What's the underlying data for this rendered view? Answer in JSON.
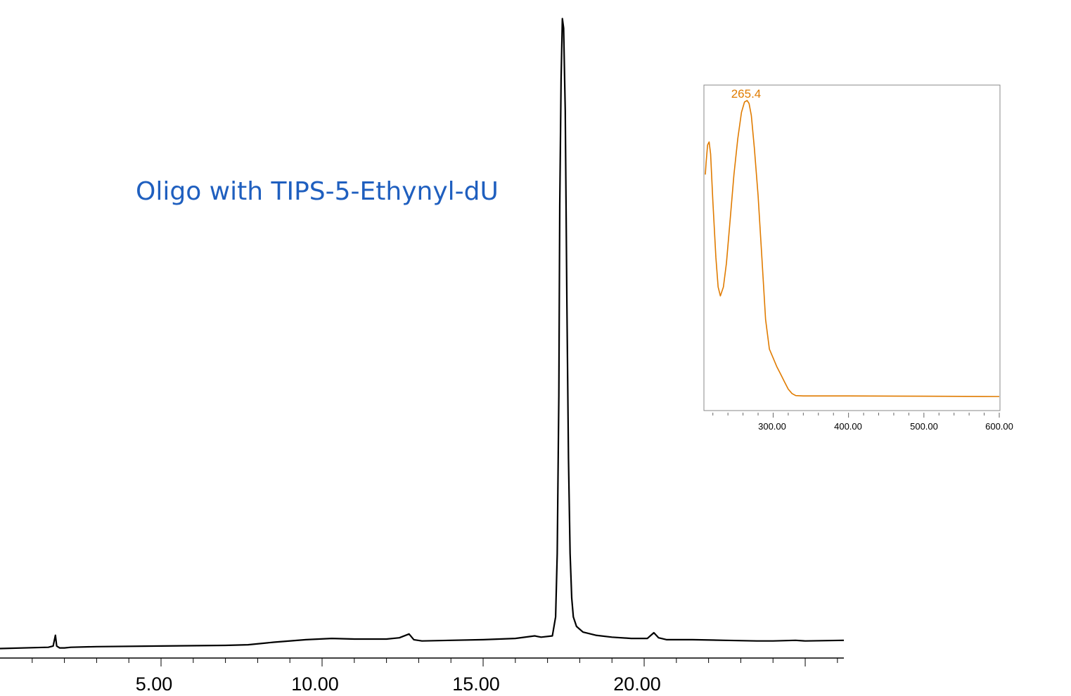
{
  "chart_data": [
    {
      "type": "line",
      "title": "Oligo with TIPS-5-Ethynyl-dU",
      "xlabel": "",
      "ylabel": "",
      "xlim": [
        0,
        26.2
      ],
      "ylim": [
        -1.5,
        100
      ],
      "grid": false,
      "x_ticks": [
        "5.00",
        "10.00",
        "15.00",
        "20.00"
      ],
      "line_color": "#000000",
      "series": [
        {
          "points": [
            [
              0,
              0
            ],
            [
              1.5,
              0.2
            ],
            [
              1.65,
              0.4
            ],
            [
              1.72,
              2.1
            ],
            [
              1.76,
              0.4
            ],
            [
              1.85,
              0.1
            ],
            [
              2.0,
              0.1
            ],
            [
              2.2,
              0.2
            ],
            [
              3,
              0.3
            ],
            [
              5,
              0.4
            ],
            [
              7,
              0.5
            ],
            [
              7.7,
              0.6
            ],
            [
              8.5,
              1.0
            ],
            [
              9.5,
              1.4
            ],
            [
              10.3,
              1.6
            ],
            [
              11,
              1.5
            ],
            [
              12,
              1.5
            ],
            [
              12.4,
              1.7
            ],
            [
              12.7,
              2.3
            ],
            [
              12.85,
              1.4
            ],
            [
              13.1,
              1.2
            ],
            [
              14,
              1.3
            ],
            [
              15,
              1.4
            ],
            [
              16,
              1.6
            ],
            [
              16.6,
              2.0
            ],
            [
              16.8,
              1.8
            ],
            [
              17.15,
              2.0
            ],
            [
              17.25,
              5
            ],
            [
              17.3,
              15
            ],
            [
              17.35,
              40
            ],
            [
              17.38,
              70
            ],
            [
              17.42,
              90
            ],
            [
              17.46,
              99.5
            ],
            [
              17.5,
              98
            ],
            [
              17.55,
              85
            ],
            [
              17.6,
              55
            ],
            [
              17.65,
              30
            ],
            [
              17.7,
              15
            ],
            [
              17.75,
              8
            ],
            [
              17.8,
              5
            ],
            [
              17.9,
              3.5
            ],
            [
              18.1,
              2.6
            ],
            [
              18.5,
              2.1
            ],
            [
              19,
              1.8
            ],
            [
              19.6,
              1.6
            ],
            [
              20.1,
              1.6
            ],
            [
              20.3,
              2.5
            ],
            [
              20.45,
              1.7
            ],
            [
              20.7,
              1.4
            ],
            [
              21.5,
              1.4
            ],
            [
              22.5,
              1.3
            ],
            [
              23.5,
              1.2
            ],
            [
              24,
              1.2
            ],
            [
              24.7,
              1.3
            ],
            [
              25,
              1.2
            ],
            [
              26.2,
              1.3
            ]
          ]
        }
      ]
    },
    {
      "type": "line",
      "title": "",
      "xlabel": "",
      "ylabel": "",
      "xlim": [
        210,
        600
      ],
      "ylim": [
        -5,
        105
      ],
      "grid": false,
      "x_ticks": [
        "300.00",
        "400.00",
        "500.00",
        "600.00"
      ],
      "line_color": "#e07b00",
      "annotations": [
        {
          "text": "265.4",
          "x": 265.4,
          "y": 100
        }
      ],
      "series": [
        {
          "points": [
            [
              210,
              75
            ],
            [
              211,
              79
            ],
            [
              213,
              85
            ],
            [
              215,
              86
            ],
            [
              217,
              82
            ],
            [
              220,
              66
            ],
            [
              224,
              47
            ],
            [
              227,
              37
            ],
            [
              230,
              34
            ],
            [
              234,
              37
            ],
            [
              238,
              45
            ],
            [
              243,
              60
            ],
            [
              248,
              75
            ],
            [
              253,
              87
            ],
            [
              258,
              96
            ],
            [
              262,
              99.5
            ],
            [
              265.4,
              100
            ],
            [
              268,
              99
            ],
            [
              271,
              95
            ],
            [
              275,
              84
            ],
            [
              280,
              68
            ],
            [
              285,
              47
            ],
            [
              290,
              26
            ],
            [
              295,
              16
            ],
            [
              300,
              13
            ],
            [
              305,
              10
            ],
            [
              310,
              7.5
            ],
            [
              315,
              5
            ],
            [
              320,
              2.5
            ],
            [
              325,
              1
            ],
            [
              330,
              0.3
            ],
            [
              340,
              0.2
            ],
            [
              400,
              0.2
            ],
            [
              500,
              0.1
            ],
            [
              600,
              0
            ]
          ]
        }
      ]
    }
  ]
}
